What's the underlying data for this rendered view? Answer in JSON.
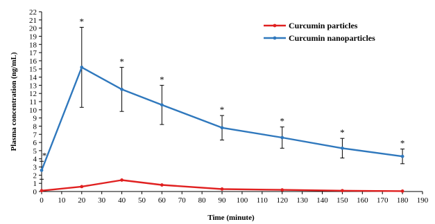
{
  "chart_data": {
    "type": "line",
    "title": "",
    "xlabel": "Time (minute)",
    "ylabel": "Plasma concentration (ng/mL)",
    "xlim": [
      0,
      190
    ],
    "ylim": [
      0,
      22
    ],
    "xticks": [
      0,
      10,
      20,
      30,
      40,
      50,
      60,
      70,
      80,
      90,
      100,
      110,
      120,
      130,
      140,
      150,
      160,
      170,
      180,
      190
    ],
    "yticks": [
      0,
      1,
      2,
      3,
      4,
      5,
      6,
      7,
      8,
      9,
      10,
      11,
      12,
      13,
      14,
      15,
      16,
      17,
      18,
      19,
      20,
      21,
      22
    ],
    "grid": false,
    "legend_position": "top-right",
    "significance_marker": "*",
    "series": [
      {
        "name": "Curcumin particles",
        "color": "#e02020",
        "x": [
          0,
          20,
          40,
          60,
          90,
          120,
          150,
          180
        ],
        "y": [
          0.1,
          0.6,
          1.4,
          0.8,
          0.3,
          0.2,
          0.1,
          0.05
        ]
      },
      {
        "name": "Curcumin nanoparticles",
        "color": "#2f78bd",
        "x": [
          0,
          20,
          40,
          60,
          90,
          120,
          150,
          180
        ],
        "y": [
          2.6,
          15.2,
          12.5,
          10.6,
          7.8,
          6.6,
          5.3,
          4.3
        ],
        "error": [
          1.1,
          4.9,
          2.7,
          2.4,
          1.5,
          1.3,
          1.2,
          0.9
        ],
        "significant": [
          true,
          true,
          true,
          true,
          true,
          true,
          true,
          true
        ]
      }
    ]
  }
}
